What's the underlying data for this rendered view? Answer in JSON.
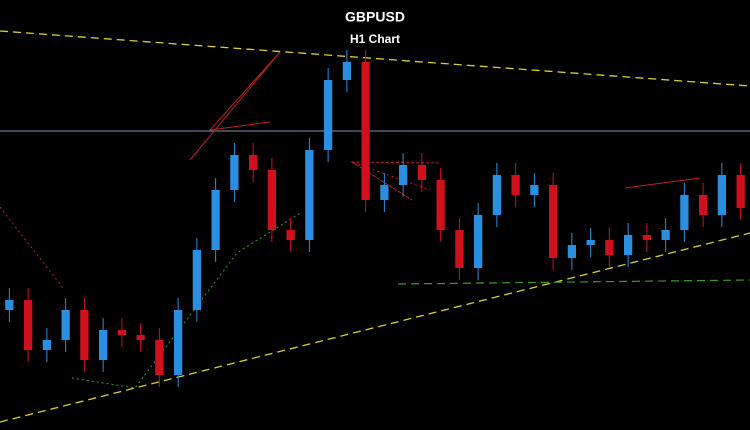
{
  "chart_data": {
    "type": "candlestick",
    "title": "GBPUSD",
    "subtitle": "H1 Chart",
    "ylim": [
      0,
      430
    ],
    "up_color": "#2a8fe0",
    "down_color": "#d0101c",
    "open": [
      120,
      130,
      80,
      90,
      120,
      70,
      100,
      95,
      90,
      55,
      120,
      180,
      240,
      275,
      260,
      200,
      190,
      280,
      350,
      368,
      230,
      245,
      265,
      250,
      200,
      162,
      215,
      255,
      235,
      245,
      172,
      185,
      190,
      175,
      195,
      190,
      200,
      235,
      215,
      255
    ],
    "high": [
      142,
      142,
      102,
      132,
      132,
      112,
      112,
      107,
      102,
      132,
      192,
      252,
      287,
      287,
      272,
      212,
      292,
      362,
      380,
      380,
      257,
      277,
      277,
      262,
      212,
      227,
      267,
      267,
      257,
      257,
      197,
      202,
      202,
      207,
      207,
      212,
      247,
      247,
      267,
      267
    ],
    "low": [
      108,
      68,
      68,
      78,
      58,
      58,
      83,
      78,
      43,
      43,
      108,
      168,
      228,
      248,
      188,
      178,
      178,
      268,
      338,
      218,
      218,
      233,
      238,
      188,
      150,
      150,
      203,
      223,
      223,
      160,
      160,
      173,
      163,
      163,
      178,
      178,
      188,
      203,
      203,
      210
    ],
    "close": [
      130,
      80,
      90,
      120,
      70,
      100,
      95,
      90,
      55,
      120,
      180,
      240,
      275,
      260,
      200,
      190,
      280,
      350,
      368,
      230,
      245,
      265,
      250,
      200,
      162,
      215,
      255,
      235,
      245,
      172,
      185,
      190,
      175,
      195,
      190,
      200,
      235,
      215,
      255,
      222
    ]
  }
}
